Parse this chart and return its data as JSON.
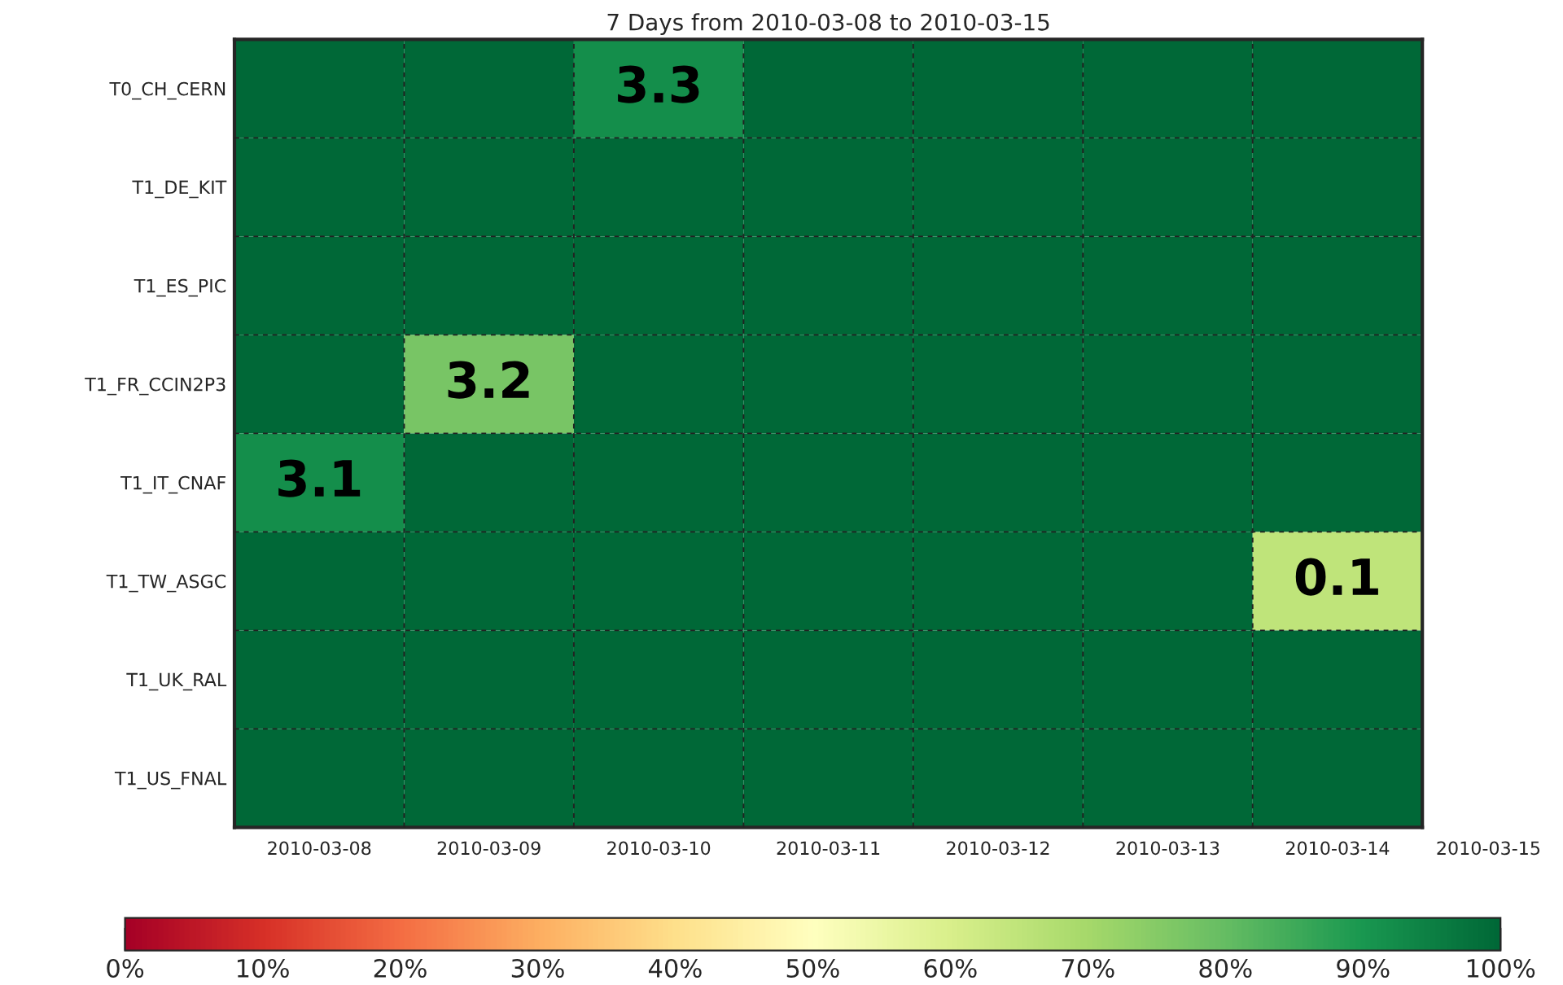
{
  "chart_data": {
    "type": "heatmap",
    "title": "7 Days from 2010-03-08 to 2010-03-15",
    "categories": [
      "2010-03-08",
      "2010-03-09",
      "2010-03-10",
      "2010-03-11",
      "2010-03-12",
      "2010-03-13",
      "2010-03-14"
    ],
    "y_categories": [
      "T0_CH_CERN",
      "T1_DE_KIT",
      "T1_ES_PIC",
      "T1_FR_CCIN2P3",
      "T1_IT_CNAF",
      "T1_TW_ASGC",
      "T1_UK_RAL",
      "T1_US_FNAL"
    ],
    "cells": [
      [
        100,
        100,
        92,
        100,
        100,
        100,
        100
      ],
      [
        100,
        100,
        100,
        100,
        100,
        100,
        100
      ],
      [
        100,
        100,
        100,
        100,
        100,
        100,
        100
      ],
      [
        100,
        77,
        100,
        100,
        100,
        100,
        100
      ],
      [
        92,
        100,
        100,
        100,
        100,
        100,
        100
      ],
      [
        100,
        100,
        100,
        100,
        100,
        100,
        65
      ],
      [
        100,
        100,
        100,
        100,
        100,
        100,
        100
      ],
      [
        100,
        100,
        100,
        100,
        100,
        100,
        100
      ]
    ],
    "annotations": [
      "3.3",
      "3.2",
      "3.1",
      "0.1",
      "2010-03-15"
    ],
    "clim": [
      0,
      100
    ],
    "cticks": [
      {
        "value": 0,
        "label": "0%"
      },
      {
        "value": 10,
        "label": "10%"
      },
      {
        "value": 20,
        "label": "20%"
      },
      {
        "value": 30,
        "label": "30%"
      },
      {
        "value": 40,
        "label": "40%"
      },
      {
        "value": 50,
        "label": "50%"
      },
      {
        "value": 60,
        "label": "60%"
      },
      {
        "value": 70,
        "label": "70%"
      },
      {
        "value": 80,
        "label": "80%"
      },
      {
        "value": 90,
        "label": "90%"
      },
      {
        "value": 100,
        "label": "100%"
      }
    ],
    "grid": true
  }
}
